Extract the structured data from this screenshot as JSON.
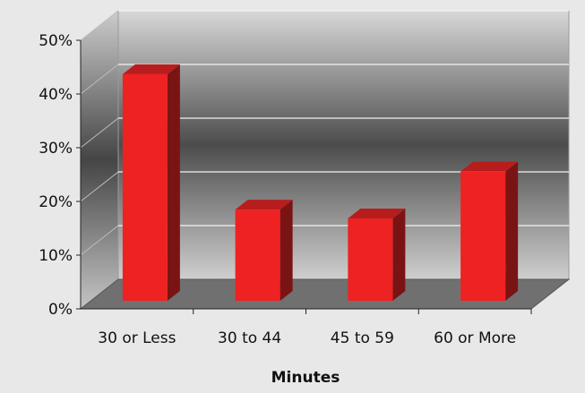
{
  "chart_data": {
    "type": "bar",
    "title": "",
    "xlabel": "Minutes",
    "ylabel": "",
    "categories": [
      "30 or Less",
      "30 to 44",
      "45 to 59",
      "60 or More"
    ],
    "values": [
      43.5,
      17.5,
      15.8,
      24.8
    ],
    "ylim": [
      0,
      50
    ],
    "yticks": [
      "0%",
      "10%",
      "20%",
      "30%",
      "40%",
      "50%"
    ],
    "grid": true,
    "legend": "none",
    "style": "3d-column",
    "colors": {
      "bar_front": "#ee2222",
      "bar_side": "#7a1414",
      "bar_top": "#b81d1d",
      "floor": "#707070",
      "wall_mid": "#505050",
      "wall_edge": "#d2d2d2",
      "gridline": "#f2f2f2",
      "background": "#e8e8e8"
    }
  }
}
